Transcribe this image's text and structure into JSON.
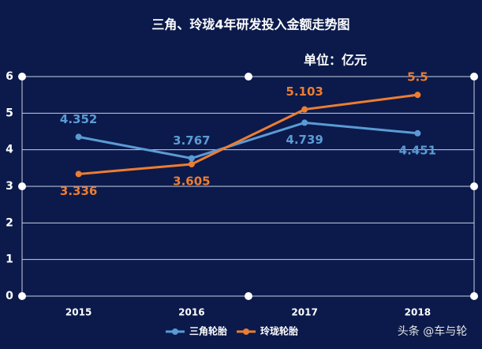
{
  "chart_data": {
    "type": "line",
    "title": "三角、玲珑4年研发投入金额走势图",
    "subtitle": "单位：亿元",
    "categories": [
      "2015",
      "2016",
      "2017",
      "2018"
    ],
    "series": [
      {
        "name": "三角轮胎",
        "color": "#5b9bd5",
        "values": [
          4.352,
          3.767,
          4.739,
          4.451
        ]
      },
      {
        "name": "玲珑轮胎",
        "color": "#ed7d31",
        "values": [
          3.336,
          3.605,
          5.103,
          5.5
        ]
      }
    ],
    "ylim": [
      0,
      6
    ],
    "yticks": [
      0,
      1,
      2,
      3,
      4,
      5,
      6
    ],
    "grid": true,
    "watermark": "头条 @车与轮"
  }
}
